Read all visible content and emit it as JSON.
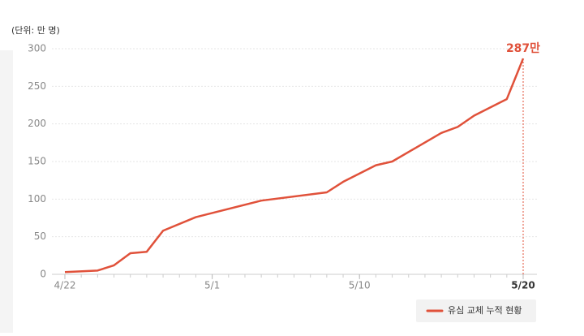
{
  "chart_data": {
    "type": "line",
    "unit_label": "(단위: 만 명)",
    "x": [
      "4/22",
      "4/24",
      "4/25",
      "4/26",
      "4/27",
      "4/28",
      "4/30",
      "5/4",
      "5/8",
      "5/9",
      "5/11",
      "5/12",
      "5/15",
      "5/16",
      "5/17",
      "5/19",
      "5/20"
    ],
    "series": [
      {
        "name": "유심 교체 누적 현황",
        "color": "#e0513a",
        "values": [
          3,
          5,
          12,
          28,
          30,
          58,
          76,
          98,
          109,
          123,
          145,
          150,
          188,
          196,
          211,
          233,
          287
        ],
        "value_labels": [
          null,
          null,
          null,
          null,
          null,
          null,
          null,
          null,
          null,
          null,
          null,
          null,
          null,
          null,
          null,
          null,
          "287만"
        ]
      }
    ],
    "xlim": [
      "4/22",
      "5/20"
    ],
    "xticks": [
      "4/22",
      "5/1",
      "5/10",
      "5/20"
    ],
    "ylim": [
      0,
      300
    ],
    "yticks": [
      0,
      50,
      100,
      150,
      200,
      250,
      300
    ],
    "grid": true,
    "legend": "bottom-right"
  }
}
